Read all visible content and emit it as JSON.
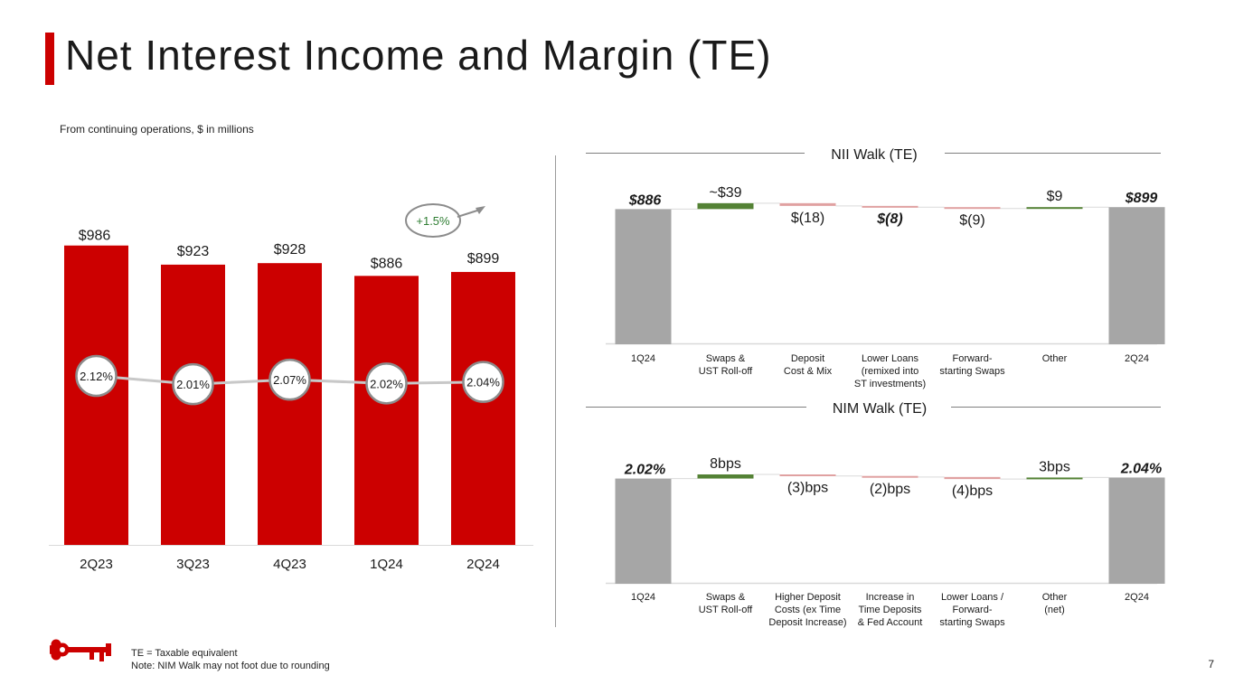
{
  "header": {
    "title": "Net Interest Income and Margin (TE)",
    "subtitle": "From continuing operations, $ in millions"
  },
  "footer": {
    "note_te": "TE = Taxable equivalent",
    "note_nim": "Note: NIM Walk may not foot due to rounding",
    "page_number": "7"
  },
  "colors": {
    "brand_red": "#cc0000",
    "bar_red": "#cc0000",
    "start_end_gray": "#a6a6a6",
    "positive_green": "#548235",
    "negative_pink": "#e0a1a1",
    "nim_line": "#c8c8c8",
    "growth_text_green": "#2e7d32"
  },
  "chart_data": [
    {
      "type": "bar",
      "categories": [
        "2Q23",
        "3Q23",
        "4Q23",
        "1Q24",
        "2Q24"
      ],
      "values": [
        986,
        923,
        928,
        886,
        899
      ],
      "value_labels": [
        "$986",
        "$923",
        "$928",
        "$886",
        "$899"
      ],
      "ylim": [
        0,
        1000
      ],
      "grid": false,
      "line_series": {
        "values": [
          2.12,
          2.01,
          2.07,
          2.02,
          2.04
        ],
        "labels": [
          "2.12%",
          "2.01%",
          "2.07%",
          "2.02%",
          "2.04%"
        ],
        "ylim": [
          1.6,
          2.6
        ]
      },
      "annotation": "+1.5%"
    },
    {
      "type": "bar",
      "subtype": "waterfall",
      "title": "NII Walk (TE)",
      "categories": [
        "1Q24",
        "Swaps & UST Roll-off",
        "Deposit Cost & Mix",
        "Lower Loans (remixed into ST investments)",
        "Forward-starting Swaps",
        "Other",
        "2Q24"
      ],
      "category_lines": [
        [
          "1Q24"
        ],
        [
          "Swaps &",
          "UST Roll-off"
        ],
        [
          "Deposit",
          "Cost & Mix"
        ],
        [
          "Lower Loans",
          "(remixed into",
          "ST investments)"
        ],
        [
          "Forward-",
          "starting Swaps"
        ],
        [
          "Other"
        ],
        [
          "2Q24"
        ]
      ],
      "values": [
        886,
        39,
        -18,
        -8,
        -9,
        9,
        899
      ],
      "kinds": [
        "total",
        "delta",
        "delta",
        "delta",
        "delta",
        "delta",
        "total"
      ],
      "value_labels": [
        "$886",
        "~$39",
        "$(18)",
        "$(8)",
        "$(9)",
        "$9",
        "$899"
      ],
      "ylim": [
        0,
        930
      ]
    },
    {
      "type": "bar",
      "subtype": "waterfall",
      "title": "NIM Walk (TE)",
      "categories": [
        "1Q24",
        "Swaps & UST Roll-off",
        "Higher Deposit Costs (ex Time Deposit Increase)",
        "Increase in Time Deposits & Fed Account",
        "Lower Loans / Forward-starting Swaps",
        "Other (net)",
        "2Q24"
      ],
      "category_lines": [
        [
          "1Q24"
        ],
        [
          "Swaps &",
          "UST Roll-off"
        ],
        [
          "Higher Deposit",
          "Costs (ex Time",
          "Deposit Increase)"
        ],
        [
          "Increase in",
          "Time Deposits",
          "& Fed Account"
        ],
        [
          "Lower Loans /",
          "Forward-",
          "starting Swaps"
        ],
        [
          "Other",
          "(net)"
        ],
        [
          "2Q24"
        ]
      ],
      "values": [
        2.02,
        0.08,
        -0.03,
        -0.02,
        -0.04,
        0.03,
        2.04
      ],
      "kinds": [
        "total",
        "delta",
        "delta",
        "delta",
        "delta",
        "delta",
        "total"
      ],
      "value_labels": [
        "2.02%",
        "8bps",
        "(3)bps",
        "(2)bps",
        "(4)bps",
        "3bps",
        "2.04%"
      ],
      "ylim": [
        0,
        2.1
      ]
    }
  ]
}
